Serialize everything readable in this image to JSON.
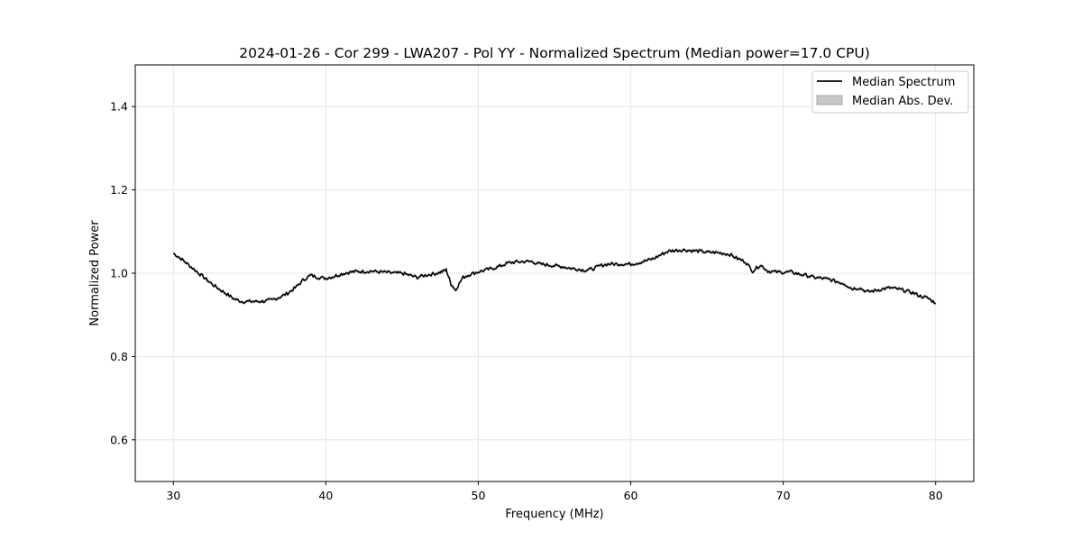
{
  "chart_data": {
    "type": "line",
    "title": "2024-01-26 - Cor 299 - LWA207 - Pol YY - Normalized Spectrum (Median power=17.0 CPU)",
    "xlabel": "Frequency (MHz)",
    "ylabel": "Normalized Power",
    "xlim": [
      27.5,
      82.5
    ],
    "ylim": [
      0.5,
      1.5
    ],
    "x_ticks": [
      30,
      40,
      50,
      60,
      70,
      80
    ],
    "y_ticks": [
      0.6,
      0.8,
      1.0,
      1.2,
      1.4
    ],
    "x_tick_labels": [
      "30",
      "40",
      "50",
      "60",
      "70",
      "80"
    ],
    "y_tick_labels": [
      "0.6",
      "0.8",
      "1.0",
      "1.2",
      "1.4"
    ],
    "grid": true,
    "legend_position": "top-right",
    "legend": [
      "Median Spectrum",
      "Median Abs. Dev."
    ],
    "line_color": "#000000",
    "band_color": "#c8c8c8",
    "series": [
      {
        "name": "Median Spectrum",
        "x": [
          30,
          30.5,
          31,
          31.5,
          32,
          32.5,
          33,
          33.5,
          34,
          34.5,
          35,
          35.5,
          36,
          36.5,
          37,
          37.5,
          38,
          38.5,
          39,
          39.5,
          40,
          40.5,
          41,
          41.5,
          42,
          42.5,
          43,
          43.5,
          44,
          44.5,
          45,
          45.5,
          46,
          46.5,
          47,
          47.5,
          47.9,
          48.2,
          48.5,
          49,
          49.5,
          50,
          50.5,
          51,
          51.5,
          52,
          52.5,
          53,
          53.5,
          54,
          54.5,
          55,
          55.5,
          56,
          56.5,
          57,
          57.5,
          58,
          58.5,
          59,
          59.5,
          60,
          60.5,
          61,
          61.5,
          62,
          62.5,
          63,
          63.5,
          64,
          64.5,
          65,
          65.5,
          66,
          66.5,
          67,
          67.5,
          68,
          68.5,
          69,
          69.5,
          70,
          70.5,
          71,
          71.5,
          72,
          72.5,
          73,
          73.5,
          74,
          74.5,
          75,
          75.5,
          76,
          76.5,
          77,
          77.5,
          78,
          78.5,
          79,
          79.5,
          80
        ],
        "values": [
          1.048,
          1.035,
          1.02,
          1.005,
          0.99,
          0.975,
          0.962,
          0.95,
          0.938,
          0.932,
          0.932,
          0.932,
          0.933,
          0.936,
          0.943,
          0.952,
          0.965,
          0.983,
          0.995,
          0.99,
          0.988,
          0.992,
          0.998,
          1.002,
          1.004,
          1.004,
          1.005,
          1.003,
          1.002,
          1.0,
          1.0,
          0.995,
          0.99,
          0.995,
          0.998,
          1.002,
          1.008,
          0.975,
          0.96,
          0.99,
          0.998,
          1.003,
          1.008,
          1.012,
          1.018,
          1.025,
          1.027,
          1.028,
          1.028,
          1.022,
          1.02,
          1.018,
          1.016,
          1.012,
          1.01,
          1.007,
          1.01,
          1.018,
          1.022,
          1.022,
          1.022,
          1.022,
          1.025,
          1.03,
          1.035,
          1.045,
          1.053,
          1.055,
          1.056,
          1.054,
          1.053,
          1.05,
          1.05,
          1.048,
          1.045,
          1.035,
          1.028,
          1.005,
          1.02,
          1.005,
          1.003,
          1.002,
          1.003,
          0.998,
          0.995,
          0.99,
          0.988,
          0.985,
          0.98,
          0.975,
          0.963,
          0.965,
          0.955,
          0.958,
          0.962,
          0.965,
          0.962,
          0.958,
          0.953,
          0.945,
          0.94,
          0.928
        ]
      }
    ],
    "mad_halfwidth": 0.004
  }
}
